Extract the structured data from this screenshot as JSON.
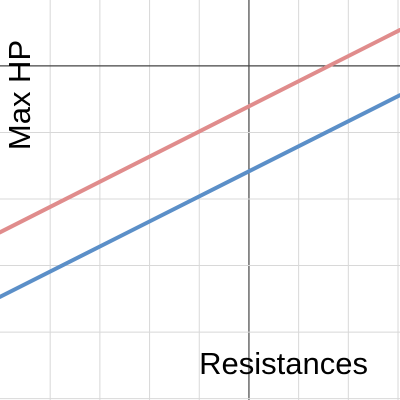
{
  "chart_data": {
    "type": "line",
    "x_label": "Resistances",
    "y_label": "Max HP",
    "x": [
      -5.01,
      3.04
    ],
    "series": [
      {
        "color": "#e08c8c",
        "values": [
          -2.5,
          0.54
        ]
      },
      {
        "color": "#5b8fc8",
        "values": [
          -3.47,
          -0.44
        ]
      }
    ],
    "xlim": [
      -5.01,
      3.04
    ],
    "ylim": [
      -5.02,
      0.99
    ],
    "xticks": [
      -4,
      -3,
      -2,
      -1,
      0,
      1,
      2,
      3
    ],
    "yticks": [
      -5,
      -4,
      -3,
      -2,
      -1,
      0
    ],
    "grid": true
  }
}
